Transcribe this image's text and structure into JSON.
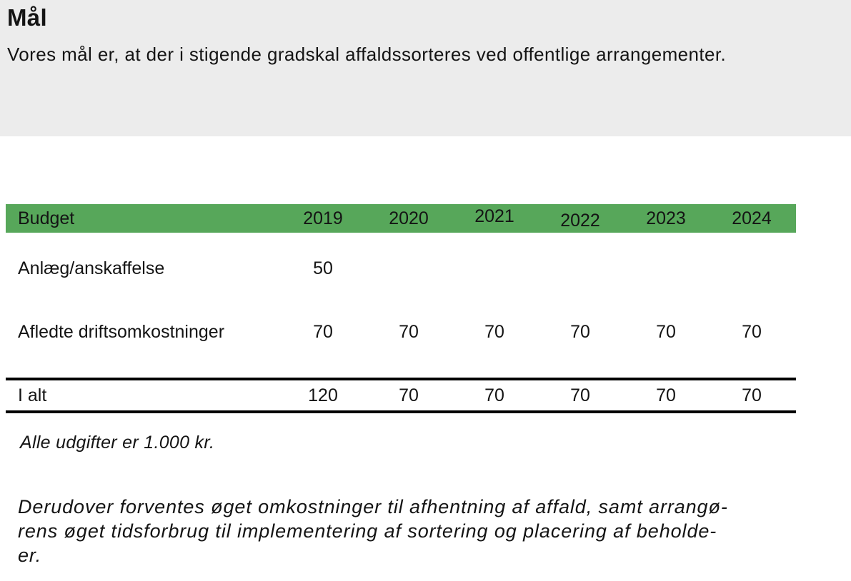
{
  "page": {
    "title": "Mål",
    "subtitle": "Vores mål er, at der i stigende gradskal affaldssorteres ved offentlige arrangementer."
  },
  "table": {
    "header_label": "Budget",
    "years": [
      "2019",
      "2020",
      "2021",
      "2022",
      "2023",
      "2024"
    ],
    "rows": [
      {
        "label": "Anlæg/anskaffelse",
        "values": [
          "50",
          "",
          "",
          "",
          "",
          ""
        ]
      },
      {
        "label": "Afledte driftsomkostninger",
        "values": [
          "70",
          "70",
          "70",
          "70",
          "70",
          "70"
        ]
      }
    ],
    "total_row": {
      "label": "I alt",
      "values": [
        "120",
        "70",
        "70",
        "70",
        "70",
        "70"
      ]
    }
  },
  "notes": {
    "unit_note": "Alle udgifter er 1.000 kr.",
    "paragraph_lines": [
      "Derudover forventes øget omkostninger til afhentning af affald, samt arrangø-",
      "rens øget tidsforbrug til implementering af sortering og placering af beholde-",
      "er."
    ]
  },
  "colors": {
    "header_green": "#57a75a",
    "hero_gray": "#ececec",
    "text_black": "#141414"
  }
}
